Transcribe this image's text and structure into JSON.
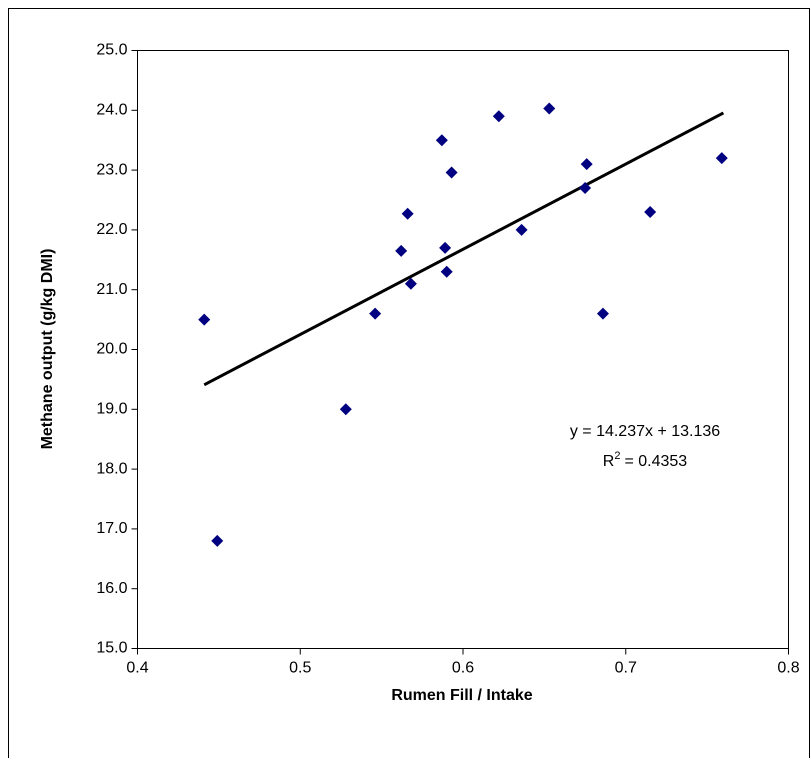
{
  "chart_data": {
    "type": "scatter",
    "x_label": "Rumen Fill / Intake",
    "y_label": "Methane output (g/kg DMI)",
    "x": [
      0.441,
      0.449,
      0.528,
      0.546,
      0.562,
      0.566,
      0.568,
      0.587,
      0.589,
      0.59,
      0.593,
      0.622,
      0.636,
      0.653,
      0.676,
      0.675,
      0.686,
      0.715,
      0.759
    ],
    "series": [
      {
        "color": "#000080",
        "values": [
          20.5,
          16.8,
          19.0,
          20.6,
          21.65,
          22.27,
          21.1,
          23.5,
          21.7,
          21.3,
          22.96,
          23.9,
          22.0,
          24.03,
          23.1,
          22.7,
          20.6,
          22.3,
          23.2
        ]
      }
    ],
    "trendline": {
      "color": "#000000",
      "x": [
        0.441,
        0.76
      ],
      "values": [
        19.41,
        23.956
      ]
    },
    "equation": "y = 14.237x + 13.136",
    "r_squared": {
      "symbol": "R",
      "superscript": "2",
      "text": "= 0.4353"
    },
    "xlim": [
      0.4,
      0.8
    ],
    "xticks": [
      0.4,
      0.5,
      0.6,
      0.7,
      0.8
    ],
    "ylim": [
      15,
      25
    ],
    "yticks": [
      {
        "value": 15,
        "label": "15.0"
      },
      {
        "value": 16,
        "label": "16.0"
      },
      {
        "value": 17,
        "label": "17.0"
      },
      {
        "value": 18,
        "label": "18.0"
      },
      {
        "value": 19,
        "label": "19.0"
      },
      {
        "value": 20,
        "label": "20.0"
      },
      {
        "value": 21,
        "label": "21.0"
      },
      {
        "value": 22,
        "label": "22.0"
      },
      {
        "value": 23,
        "label": "23.0"
      },
      {
        "value": 24,
        "label": "24.0"
      },
      {
        "value": 25,
        "label": "25.0"
      }
    ],
    "grid": false
  }
}
